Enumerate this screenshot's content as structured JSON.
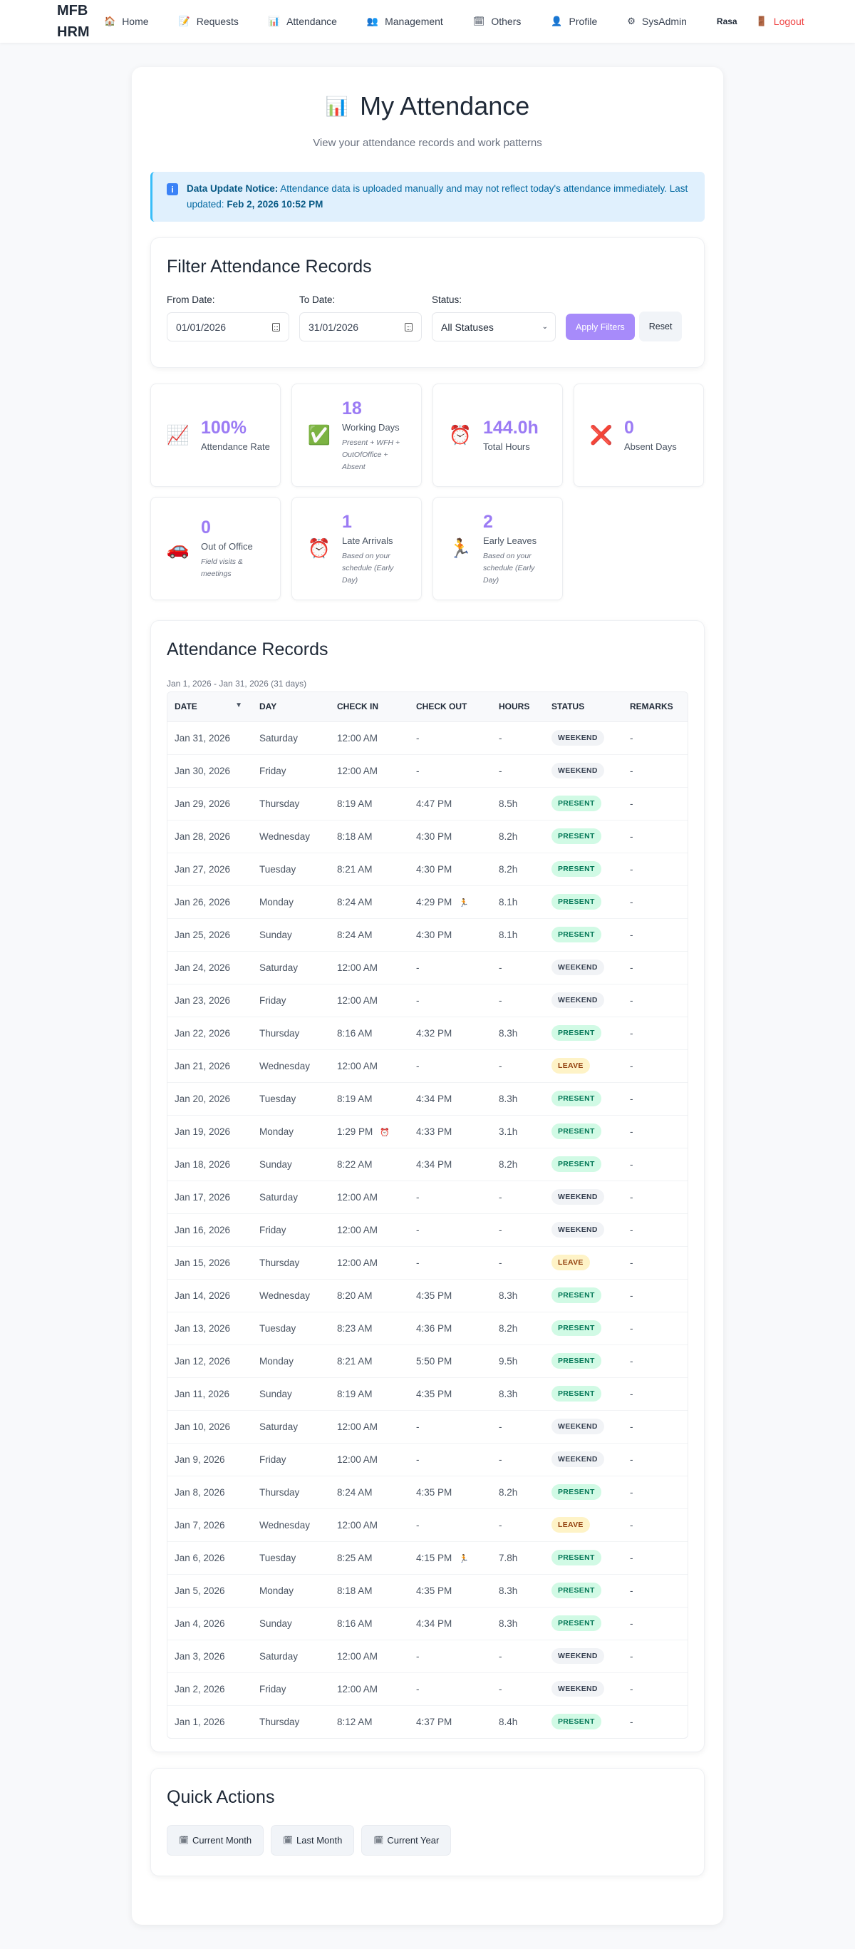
{
  "nav": {
    "brand": "MFB HRM",
    "items": [
      {
        "label": "Home",
        "icon": "🏠",
        "icon_name": "home-icon"
      },
      {
        "label": "Requests",
        "icon": "📝",
        "icon_name": "memo-icon"
      },
      {
        "label": "Attendance",
        "icon": "📊",
        "icon_name": "bar-chart-icon"
      },
      {
        "label": "Management",
        "icon": "👥",
        "icon_name": "people-icon"
      },
      {
        "label": "Others",
        "icon": "🗓",
        "icon_name": "calendar-icon"
      },
      {
        "label": "Profile",
        "icon": "👤",
        "icon_name": "user-icon"
      },
      {
        "label": "SysAdmin",
        "icon": "⚙",
        "icon_name": "gear-icon"
      }
    ],
    "user": "Rasa",
    "logout": {
      "label": "Logout",
      "icon": "🚪"
    }
  },
  "header": {
    "title": "My Attendance",
    "title_icon": "📊",
    "subtitle": "View your attendance records and work patterns"
  },
  "notice": {
    "label": "Data Update Notice:",
    "text": " Attendance data is uploaded manually and may not reflect today's attendance immediately. Last updated: ",
    "last_updated": "Feb 2, 2026 10:52 PM"
  },
  "filter": {
    "title": "Filter Attendance Records",
    "from_label": "From Date:",
    "from_value": "01/01/2026",
    "to_label": "To Date:",
    "to_value": "31/01/2026",
    "status_label": "Status:",
    "status_value": "All Statuses",
    "apply_label": "Apply Filters",
    "reset_label": "Reset"
  },
  "stats": [
    {
      "value": "100%",
      "label": "Attendance Rate",
      "note": "",
      "icon": "📈",
      "icon_name": "chart-increasing-icon"
    },
    {
      "value": "18",
      "label": "Working Days",
      "note": "Present + WFH + OutOfOffice + Absent",
      "icon": "✅",
      "icon_name": "check-mark-icon"
    },
    {
      "value": "144.0h",
      "label": "Total Hours",
      "note": "",
      "icon": "⏰",
      "icon_name": "alarm-clock-icon"
    },
    {
      "value": "0",
      "label": "Absent Days",
      "note": "",
      "icon": "❌",
      "icon_name": "cross-mark-icon"
    },
    {
      "value": "0",
      "label": "Out of Office",
      "note": "Field visits & meetings",
      "icon": "🚗",
      "icon_name": "car-icon"
    },
    {
      "value": "1",
      "label": "Late Arrivals",
      "note": "Based on your schedule (Early Day)",
      "icon": "⏰",
      "icon_name": "alarm-clock-icon"
    },
    {
      "value": "2",
      "label": "Early Leaves",
      "note": "Based on your schedule (Early Day)",
      "icon": "🏃",
      "icon_name": "running-person-icon"
    }
  ],
  "records": {
    "title": "Attendance Records",
    "range": "Jan 1, 2026 - Jan 31, 2026 (31 days)",
    "columns": [
      "DATE",
      "DAY",
      "CHECK IN",
      "CHECK OUT",
      "HOURS",
      "STATUS",
      "REMARKS"
    ],
    "sort_indicator": "▼",
    "rows": [
      {
        "date": "Jan 31, 2026",
        "day": "Saturday",
        "in": "12:00 AM",
        "out": "-",
        "hours": "-",
        "status": "WEEKEND",
        "remarks": "-"
      },
      {
        "date": "Jan 30, 2026",
        "day": "Friday",
        "in": "12:00 AM",
        "out": "-",
        "hours": "-",
        "status": "WEEKEND",
        "remarks": "-"
      },
      {
        "date": "Jan 29, 2026",
        "day": "Thursday",
        "in": "8:19 AM",
        "out": "4:47 PM",
        "hours": "8.5h",
        "status": "PRESENT",
        "remarks": "-"
      },
      {
        "date": "Jan 28, 2026",
        "day": "Wednesday",
        "in": "8:18 AM",
        "out": "4:30 PM",
        "hours": "8.2h",
        "status": "PRESENT",
        "remarks": "-"
      },
      {
        "date": "Jan 27, 2026",
        "day": "Tuesday",
        "in": "8:21 AM",
        "out": "4:30 PM",
        "hours": "8.2h",
        "status": "PRESENT",
        "remarks": "-"
      },
      {
        "date": "Jan 26, 2026",
        "day": "Monday",
        "in": "8:24 AM",
        "out": "4:29 PM",
        "out_flag": "🏃",
        "hours": "8.1h",
        "status": "PRESENT",
        "remarks": "-"
      },
      {
        "date": "Jan 25, 2026",
        "day": "Sunday",
        "in": "8:24 AM",
        "out": "4:30 PM",
        "hours": "8.1h",
        "status": "PRESENT",
        "remarks": "-"
      },
      {
        "date": "Jan 24, 2026",
        "day": "Saturday",
        "in": "12:00 AM",
        "out": "-",
        "hours": "-",
        "status": "WEEKEND",
        "remarks": "-"
      },
      {
        "date": "Jan 23, 2026",
        "day": "Friday",
        "in": "12:00 AM",
        "out": "-",
        "hours": "-",
        "status": "WEEKEND",
        "remarks": "-"
      },
      {
        "date": "Jan 22, 2026",
        "day": "Thursday",
        "in": "8:16 AM",
        "out": "4:32 PM",
        "hours": "8.3h",
        "status": "PRESENT",
        "remarks": "-"
      },
      {
        "date": "Jan 21, 2026",
        "day": "Wednesday",
        "in": "12:00 AM",
        "out": "-",
        "hours": "-",
        "status": "LEAVE",
        "remarks": "-"
      },
      {
        "date": "Jan 20, 2026",
        "day": "Tuesday",
        "in": "8:19 AM",
        "out": "4:34 PM",
        "hours": "8.3h",
        "status": "PRESENT",
        "remarks": "-"
      },
      {
        "date": "Jan 19, 2026",
        "day": "Monday",
        "in": "1:29 PM",
        "in_flag": "⏰",
        "out": "4:33 PM",
        "hours": "3.1h",
        "status": "PRESENT",
        "remarks": "-"
      },
      {
        "date": "Jan 18, 2026",
        "day": "Sunday",
        "in": "8:22 AM",
        "out": "4:34 PM",
        "hours": "8.2h",
        "status": "PRESENT",
        "remarks": "-"
      },
      {
        "date": "Jan 17, 2026",
        "day": "Saturday",
        "in": "12:00 AM",
        "out": "-",
        "hours": "-",
        "status": "WEEKEND",
        "remarks": "-"
      },
      {
        "date": "Jan 16, 2026",
        "day": "Friday",
        "in": "12:00 AM",
        "out": "-",
        "hours": "-",
        "status": "WEEKEND",
        "remarks": "-"
      },
      {
        "date": "Jan 15, 2026",
        "day": "Thursday",
        "in": "12:00 AM",
        "out": "-",
        "hours": "-",
        "status": "LEAVE",
        "remarks": "-"
      },
      {
        "date": "Jan 14, 2026",
        "day": "Wednesday",
        "in": "8:20 AM",
        "out": "4:35 PM",
        "hours": "8.3h",
        "status": "PRESENT",
        "remarks": "-"
      },
      {
        "date": "Jan 13, 2026",
        "day": "Tuesday",
        "in": "8:23 AM",
        "out": "4:36 PM",
        "hours": "8.2h",
        "status": "PRESENT",
        "remarks": "-"
      },
      {
        "date": "Jan 12, 2026",
        "day": "Monday",
        "in": "8:21 AM",
        "out": "5:50 PM",
        "hours": "9.5h",
        "status": "PRESENT",
        "remarks": "-"
      },
      {
        "date": "Jan 11, 2026",
        "day": "Sunday",
        "in": "8:19 AM",
        "out": "4:35 PM",
        "hours": "8.3h",
        "status": "PRESENT",
        "remarks": "-"
      },
      {
        "date": "Jan 10, 2026",
        "day": "Saturday",
        "in": "12:00 AM",
        "out": "-",
        "hours": "-",
        "status": "WEEKEND",
        "remarks": "-"
      },
      {
        "date": "Jan 9, 2026",
        "day": "Friday",
        "in": "12:00 AM",
        "out": "-",
        "hours": "-",
        "status": "WEEKEND",
        "remarks": "-"
      },
      {
        "date": "Jan 8, 2026",
        "day": "Thursday",
        "in": "8:24 AM",
        "out": "4:35 PM",
        "hours": "8.2h",
        "status": "PRESENT",
        "remarks": "-"
      },
      {
        "date": "Jan 7, 2026",
        "day": "Wednesday",
        "in": "12:00 AM",
        "out": "-",
        "hours": "-",
        "status": "LEAVE",
        "remarks": "-"
      },
      {
        "date": "Jan 6, 2026",
        "day": "Tuesday",
        "in": "8:25 AM",
        "out": "4:15 PM",
        "out_flag": "🏃",
        "hours": "7.8h",
        "status": "PRESENT",
        "remarks": "-"
      },
      {
        "date": "Jan 5, 2026",
        "day": "Monday",
        "in": "8:18 AM",
        "out": "4:35 PM",
        "hours": "8.3h",
        "status": "PRESENT",
        "remarks": "-"
      },
      {
        "date": "Jan 4, 2026",
        "day": "Sunday",
        "in": "8:16 AM",
        "out": "4:34 PM",
        "hours": "8.3h",
        "status": "PRESENT",
        "remarks": "-"
      },
      {
        "date": "Jan 3, 2026",
        "day": "Saturday",
        "in": "12:00 AM",
        "out": "-",
        "hours": "-",
        "status": "WEEKEND",
        "remarks": "-"
      },
      {
        "date": "Jan 2, 2026",
        "day": "Friday",
        "in": "12:00 AM",
        "out": "-",
        "hours": "-",
        "status": "WEEKEND",
        "remarks": "-"
      },
      {
        "date": "Jan 1, 2026",
        "day": "Thursday",
        "in": "8:12 AM",
        "out": "4:37 PM",
        "hours": "8.4h",
        "status": "PRESENT",
        "remarks": "-"
      }
    ]
  },
  "quick_actions": {
    "title": "Quick Actions",
    "buttons": [
      {
        "label": "Current Month",
        "icon": "🗓"
      },
      {
        "label": "Last Month",
        "icon": "🗓"
      },
      {
        "label": "Current Year",
        "icon": "🗓"
      }
    ]
  },
  "colors": {
    "accent": "#a78bfa",
    "stat_value": "#9b7bf4",
    "logout": "#ef4444",
    "present_bg": "#d1fae5",
    "present_text": "#047857",
    "leave_bg": "#fef3c7",
    "leave_text": "#92400e",
    "weekend_bg": "#f1f3f6",
    "notice_bg": "#e0f0fd"
  }
}
